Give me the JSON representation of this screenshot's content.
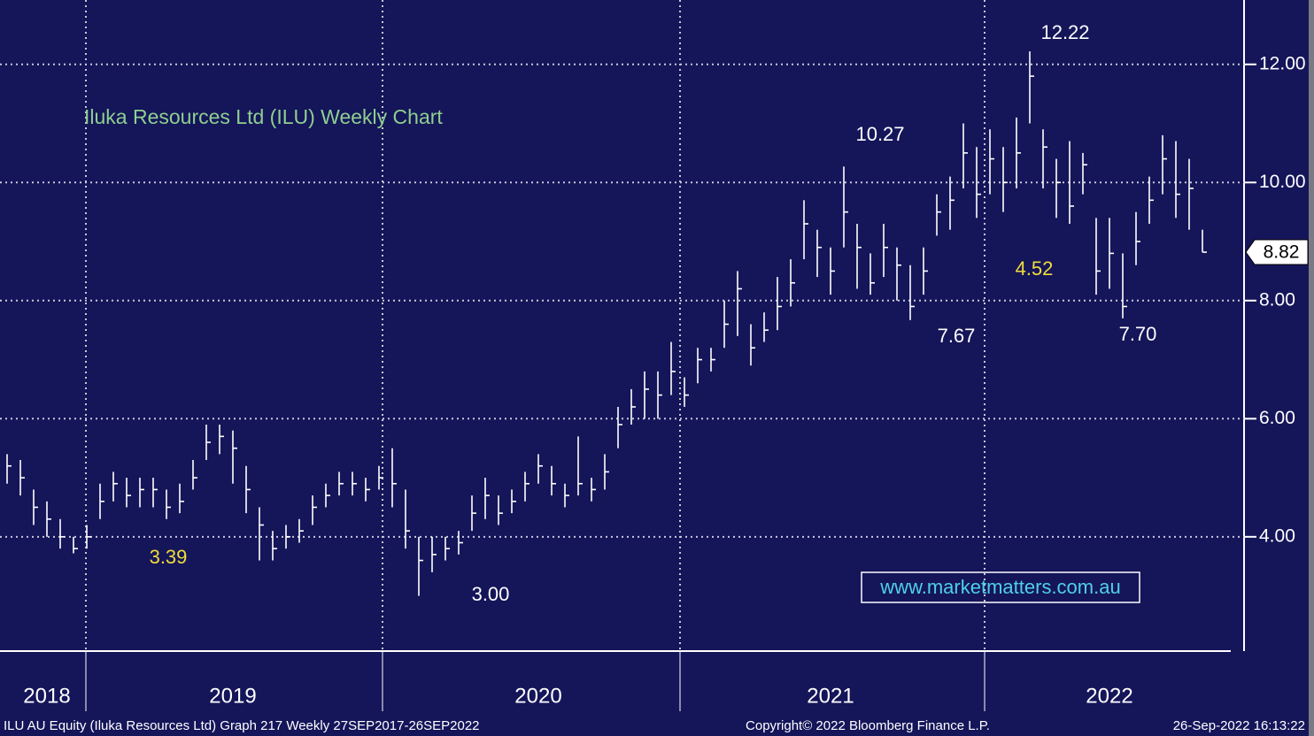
{
  "chart_data": {
    "type": "hlc",
    "title": "Iluka Resources Ltd (ILU) Weekly Chart",
    "watermark": "www.marketmatters.com.au",
    "footer_left": "ILU AU Equity (Iluka Resources Ltd) Graph 217  Weekly 27SEP2017-26SEP2022",
    "footer_center": "Copyright© 2022 Bloomberg Finance L.P.",
    "footer_right": "26-Sep-2022 16:13:22",
    "color": "#ffffff",
    "grid": true,
    "categories": [
      null,
      null,
      null,
      "2018",
      null,
      null,
      null,
      null,
      null,
      null,
      null,
      null,
      null,
      null,
      null,
      null,
      null,
      "2019",
      null,
      null,
      null,
      null,
      null,
      null,
      null,
      null,
      null,
      null,
      null,
      null,
      null,
      null,
      null,
      null,
      null,
      null,
      null,
      null,
      null,
      null,
      "2020",
      null,
      null,
      null,
      null,
      null,
      null,
      null,
      null,
      null,
      null,
      null,
      null,
      null,
      null,
      null,
      null,
      null,
      null,
      null,
      null,
      null,
      "2021",
      null,
      null,
      null,
      null,
      null,
      null,
      null,
      null,
      null,
      null,
      null,
      null,
      null,
      null,
      null,
      null,
      null,
      null,
      null,
      null,
      "2022",
      null,
      null,
      null,
      null,
      null,
      null,
      null
    ],
    "high": [
      5.4,
      5.3,
      4.8,
      4.6,
      4.3,
      4.0,
      4.2,
      4.9,
      5.1,
      5.0,
      5.0,
      5.0,
      4.8,
      4.9,
      5.3,
      5.9,
      5.9,
      5.8,
      5.2,
      4.5,
      4.1,
      4.2,
      4.3,
      4.7,
      4.9,
      5.1,
      5.1,
      5.0,
      5.2,
      5.5,
      4.8,
      4.0,
      4.0,
      4.0,
      4.1,
      4.7,
      5.0,
      4.7,
      4.8,
      5.1,
      5.4,
      5.2,
      4.9,
      5.7,
      5.0,
      5.4,
      6.2,
      6.5,
      6.8,
      6.8,
      7.3,
      6.7,
      7.2,
      7.2,
      8.0,
      8.5,
      7.6,
      7.8,
      8.4,
      8.7,
      9.7,
      9.2,
      8.9,
      10.27,
      9.3,
      8.8,
      9.3,
      8.9,
      8.6,
      8.9,
      9.8,
      10.1,
      11.0,
      10.6,
      10.9,
      10.6,
      11.1,
      12.22,
      10.9,
      10.4,
      10.7,
      10.5,
      9.4,
      9.4,
      8.8,
      9.5,
      10.1,
      10.8,
      10.7,
      10.4,
      9.2
    ],
    "low": [
      4.9,
      4.7,
      4.2,
      4.0,
      3.8,
      3.72,
      3.8,
      4.3,
      4.6,
      4.5,
      4.5,
      4.5,
      4.3,
      4.4,
      4.8,
      5.3,
      5.4,
      4.9,
      4.4,
      3.6,
      3.6,
      3.8,
      3.9,
      4.2,
      4.5,
      4.7,
      4.7,
      4.6,
      4.8,
      4.5,
      3.8,
      3.0,
      3.4,
      3.6,
      3.7,
      4.1,
      4.3,
      4.2,
      4.4,
      4.6,
      4.9,
      4.7,
      4.5,
      4.7,
      4.6,
      4.8,
      5.5,
      5.9,
      6.0,
      6.0,
      6.4,
      6.2,
      6.6,
      6.8,
      7.2,
      7.4,
      6.9,
      7.3,
      7.5,
      7.9,
      8.7,
      8.4,
      8.1,
      8.9,
      8.2,
      8.1,
      8.4,
      8.0,
      7.67,
      8.1,
      9.1,
      9.2,
      9.9,
      9.4,
      9.8,
      9.5,
      9.9,
      11.0,
      9.9,
      9.4,
      9.3,
      9.8,
      8.1,
      8.2,
      7.7,
      8.6,
      9.3,
      9.8,
      9.4,
      9.2,
      8.82
    ],
    "close": [
      5.2,
      5.0,
      4.5,
      4.3,
      4.0,
      3.8,
      4.0,
      4.6,
      4.9,
      4.7,
      4.8,
      4.8,
      4.5,
      4.6,
      5.0,
      5.6,
      5.7,
      5.5,
      4.8,
      4.2,
      3.8,
      4.0,
      4.1,
      4.5,
      4.7,
      4.9,
      4.9,
      4.8,
      5.0,
      4.9,
      4.1,
      3.6,
      3.7,
      3.8,
      3.9,
      4.4,
      4.7,
      4.4,
      4.6,
      4.9,
      5.2,
      4.9,
      4.7,
      4.9,
      4.8,
      5.1,
      5.9,
      6.2,
      6.5,
      6.4,
      6.8,
      6.4,
      7.0,
      7.0,
      7.6,
      8.2,
      7.2,
      7.5,
      7.9,
      8.3,
      9.3,
      8.9,
      8.5,
      9.5,
      8.9,
      8.3,
      8.9,
      8.6,
      7.9,
      8.5,
      9.5,
      9.7,
      10.5,
      9.8,
      10.4,
      10.0,
      10.5,
      11.8,
      10.6,
      10.0,
      9.6,
      10.3,
      8.5,
      8.8,
      7.9,
      9.0,
      9.7,
      10.4,
      9.8,
      9.9,
      8.82
    ],
    "last_price_label": "8.82",
    "ylim": [
      2.08,
      13.09
    ],
    "yticks": [
      {
        "value": 4,
        "label": "4.00"
      },
      {
        "value": 6,
        "label": "6.00"
      },
      {
        "value": 8,
        "label": "8.00"
      },
      {
        "value": 10,
        "label": "10.00"
      },
      {
        "value": 12,
        "label": "12.00"
      }
    ],
    "annotations": [
      {
        "text": "12.22",
        "color": "#ffffff"
      },
      {
        "text": "10.27",
        "color": "#ffffff"
      },
      {
        "text": "7.67",
        "color": "#ffffff"
      },
      {
        "text": "7.70",
        "color": "#ffffff"
      },
      {
        "text": "3.39",
        "color": "#f0dc3c"
      },
      {
        "text": "3.00",
        "color": "#ffffff"
      },
      {
        "text": "4.52",
        "color": "#f0dc3c"
      }
    ]
  }
}
